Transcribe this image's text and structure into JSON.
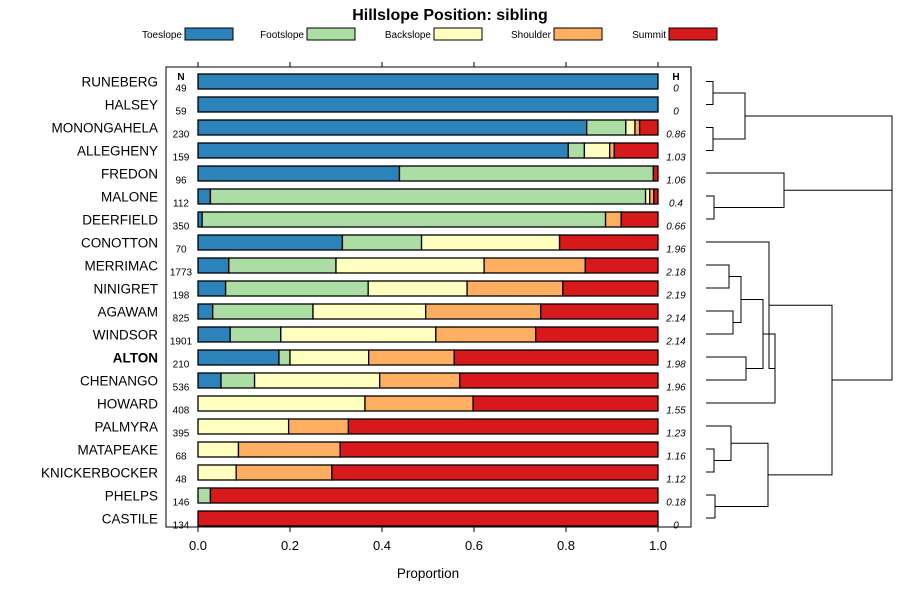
{
  "chart_data": {
    "type": "bar",
    "orientation": "horizontal",
    "stacked": true,
    "title": "Hillslope Position: sibling",
    "xlabel": "Proportion",
    "ylabel": "",
    "xlim": [
      0,
      1
    ],
    "xticks": [
      "0.0",
      "0.2",
      "0.4",
      "0.6",
      "0.8",
      "1.0"
    ],
    "xtick_values": [
      0,
      0.2,
      0.4,
      0.6,
      0.8,
      1.0
    ],
    "n_header": "N",
    "h_header": "H",
    "legend_position": "top",
    "legend": [
      {
        "name": "Toeslope",
        "color": "#2B83BA"
      },
      {
        "name": "Footslope",
        "color": "#ABDDA4"
      },
      {
        "name": "Backslope",
        "color": "#FFFFBF"
      },
      {
        "name": "Shoulder",
        "color": "#FDAE61"
      },
      {
        "name": "Summit",
        "color": "#D7191C"
      }
    ],
    "rows": [
      {
        "label": "RUNEBERG",
        "n": "49",
        "h": "0",
        "bold": false,
        "values": [
          1.0,
          0,
          0,
          0,
          0
        ]
      },
      {
        "label": "HALSEY",
        "n": "59",
        "h": "0",
        "bold": false,
        "values": [
          1.0,
          0,
          0,
          0,
          0
        ]
      },
      {
        "label": "MONONGAHELA",
        "n": "230",
        "h": "0.86",
        "bold": false,
        "values": [
          0.845,
          0.085,
          0.02,
          0.01,
          0.04
        ]
      },
      {
        "label": "ALLEGHENY",
        "n": "159",
        "h": "1.03",
        "bold": false,
        "values": [
          0.805,
          0.035,
          0.055,
          0.01,
          0.095
        ]
      },
      {
        "label": "FREDON",
        "n": "96",
        "h": "1.06",
        "bold": false,
        "values": [
          0.438,
          0.552,
          0,
          0,
          0.01
        ]
      },
      {
        "label": "MALONE",
        "n": "112",
        "h": "0.4",
        "bold": false,
        "values": [
          0.027,
          0.946,
          0.009,
          0.009,
          0.009
        ]
      },
      {
        "label": "DEERFIELD",
        "n": "350",
        "h": "0.66",
        "bold": false,
        "values": [
          0.009,
          0.877,
          0,
          0.034,
          0.08
        ]
      },
      {
        "label": "CONOTTON",
        "n": "70",
        "h": "1.96",
        "bold": false,
        "values": [
          0.314,
          0.172,
          0.3,
          0,
          0.214
        ]
      },
      {
        "label": "MERRIMAC",
        "n": "1773",
        "h": "2.18",
        "bold": false,
        "values": [
          0.067,
          0.233,
          0.322,
          0.22,
          0.158
        ]
      },
      {
        "label": "NINIGRET",
        "n": "198",
        "h": "2.19",
        "bold": false,
        "values": [
          0.06,
          0.31,
          0.215,
          0.208,
          0.207
        ]
      },
      {
        "label": "AGAWAM",
        "n": "825",
        "h": "2.14",
        "bold": false,
        "values": [
          0.032,
          0.218,
          0.245,
          0.25,
          0.255
        ]
      },
      {
        "label": "WINDSOR",
        "n": "1901",
        "h": "2.14",
        "bold": false,
        "values": [
          0.07,
          0.11,
          0.337,
          0.217,
          0.266
        ]
      },
      {
        "label": "ALTON",
        "n": "210",
        "h": "1.98",
        "bold": true,
        "values": [
          0.176,
          0.024,
          0.171,
          0.186,
          0.443
        ]
      },
      {
        "label": "CHENANGO",
        "n": "536",
        "h": "1.96",
        "bold": false,
        "values": [
          0.05,
          0.073,
          0.272,
          0.174,
          0.431
        ]
      },
      {
        "label": "HOWARD",
        "n": "408",
        "h": "1.55",
        "bold": false,
        "values": [
          0,
          0,
          0.363,
          0.235,
          0.402
        ]
      },
      {
        "label": "PALMYRA",
        "n": "395",
        "h": "1.23",
        "bold": false,
        "values": [
          0,
          0,
          0.197,
          0.13,
          0.673
        ]
      },
      {
        "label": "MATAPEAKE",
        "n": "68",
        "h": "1.16",
        "bold": false,
        "values": [
          0,
          0,
          0.088,
          0.221,
          0.691
        ]
      },
      {
        "label": "KNICKERBOCKER",
        "n": "48",
        "h": "1.12",
        "bold": false,
        "values": [
          0,
          0,
          0.083,
          0.208,
          0.709
        ]
      },
      {
        "label": "PHELPS",
        "n": "146",
        "h": "0.18",
        "bold": false,
        "values": [
          0,
          0.027,
          0,
          0,
          0.973
        ]
      },
      {
        "label": "CASTILE",
        "n": "134",
        "h": "0",
        "bold": false,
        "values": [
          0,
          0,
          0,
          0,
          1.0
        ]
      }
    ]
  }
}
